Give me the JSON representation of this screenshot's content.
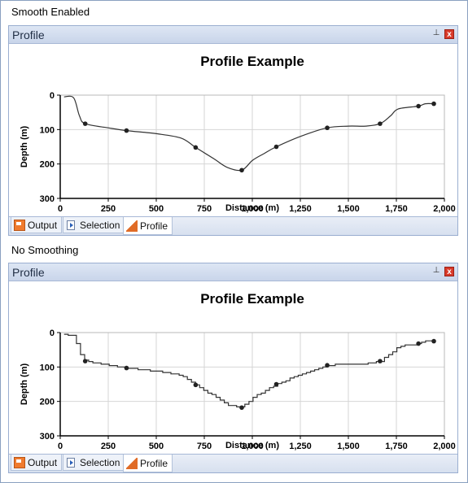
{
  "panels": [
    {
      "caption": "Smooth Enabled",
      "window_title": "Profile",
      "pin_glyph": "⊥",
      "close_glyph": "x",
      "tabs": [
        {
          "label": "Output",
          "icon": "output-icon",
          "active": false
        },
        {
          "label": "Selection",
          "icon": "selection-icon",
          "active": false
        },
        {
          "label": "Profile",
          "icon": "profile-icon",
          "active": true
        }
      ]
    },
    {
      "caption": "No Smoothing",
      "window_title": "Profile",
      "pin_glyph": "⊥",
      "close_glyph": "x",
      "tabs": [
        {
          "label": "Output",
          "icon": "output-icon",
          "active": false
        },
        {
          "label": "Selection",
          "icon": "selection-icon",
          "active": false
        },
        {
          "label": "Profile",
          "icon": "profile-icon",
          "active": true
        }
      ]
    }
  ],
  "chart_data": [
    {
      "type": "line",
      "title": "Profile Example",
      "xlabel": "Distance (m)",
      "ylabel": "Depth (m)",
      "xlim": [
        0,
        2000
      ],
      "ylim": [
        0,
        300
      ],
      "y_inverted": true,
      "x_ticks": [
        0,
        250,
        500,
        750,
        1000,
        1250,
        1500,
        1750,
        2000
      ],
      "x_tick_labels": [
        "0",
        "250",
        "500",
        "750",
        "1,000",
        "1,250",
        "1,500",
        "1,750",
        "2,000"
      ],
      "y_ticks": [
        0,
        100,
        200,
        300
      ],
      "y_tick_labels": [
        "0",
        "100",
        "200",
        "300"
      ],
      "grid": true,
      "smooth": true,
      "line_color": "#333333",
      "points": [
        {
          "x": 20,
          "y": 5
        },
        {
          "x": 70,
          "y": 8
        },
        {
          "x": 100,
          "y": 60
        },
        {
          "x": 130,
          "y": 83
        },
        {
          "x": 250,
          "y": 95
        },
        {
          "x": 345,
          "y": 103
        },
        {
          "x": 500,
          "y": 112
        },
        {
          "x": 630,
          "y": 125
        },
        {
          "x": 705,
          "y": 152
        },
        {
          "x": 800,
          "y": 185
        },
        {
          "x": 870,
          "y": 210
        },
        {
          "x": 945,
          "y": 218
        },
        {
          "x": 1000,
          "y": 190
        },
        {
          "x": 1060,
          "y": 170
        },
        {
          "x": 1125,
          "y": 150
        },
        {
          "x": 1250,
          "y": 120
        },
        {
          "x": 1390,
          "y": 95
        },
        {
          "x": 1500,
          "y": 90
        },
        {
          "x": 1590,
          "y": 90
        },
        {
          "x": 1665,
          "y": 83
        },
        {
          "x": 1720,
          "y": 60
        },
        {
          "x": 1760,
          "y": 40
        },
        {
          "x": 1865,
          "y": 32
        },
        {
          "x": 1900,
          "y": 25
        },
        {
          "x": 1945,
          "y": 25
        }
      ],
      "markers": [
        {
          "x": 130,
          "y": 83
        },
        {
          "x": 345,
          "y": 103
        },
        {
          "x": 705,
          "y": 152
        },
        {
          "x": 945,
          "y": 218
        },
        {
          "x": 1125,
          "y": 150
        },
        {
          "x": 1390,
          "y": 95
        },
        {
          "x": 1665,
          "y": 83
        },
        {
          "x": 1865,
          "y": 32
        },
        {
          "x": 1945,
          "y": 25
        }
      ]
    },
    {
      "type": "line",
      "title": "Profile Example",
      "xlabel": "Distance (m)",
      "ylabel": "Depth (m)",
      "xlim": [
        0,
        2000
      ],
      "ylim": [
        0,
        300
      ],
      "y_inverted": true,
      "x_ticks": [
        0,
        250,
        500,
        750,
        1000,
        1250,
        1500,
        1750,
        2000
      ],
      "x_tick_labels": [
        "0",
        "250",
        "500",
        "750",
        "1,000",
        "1,250",
        "1,500",
        "1,750",
        "2,000"
      ],
      "y_ticks": [
        0,
        100,
        200,
        300
      ],
      "y_tick_labels": [
        "0",
        "100",
        "200",
        "300"
      ],
      "grid": true,
      "smooth": false,
      "step": true,
      "line_color": "#333333",
      "points": [
        {
          "x": 20,
          "y": 5
        },
        {
          "x": 70,
          "y": 8
        },
        {
          "x": 100,
          "y": 60
        },
        {
          "x": 130,
          "y": 83
        },
        {
          "x": 250,
          "y": 95
        },
        {
          "x": 345,
          "y": 103
        },
        {
          "x": 500,
          "y": 112
        },
        {
          "x": 630,
          "y": 125
        },
        {
          "x": 705,
          "y": 152
        },
        {
          "x": 800,
          "y": 185
        },
        {
          "x": 870,
          "y": 210
        },
        {
          "x": 945,
          "y": 218
        },
        {
          "x": 1000,
          "y": 190
        },
        {
          "x": 1060,
          "y": 170
        },
        {
          "x": 1125,
          "y": 150
        },
        {
          "x": 1250,
          "y": 120
        },
        {
          "x": 1390,
          "y": 95
        },
        {
          "x": 1500,
          "y": 90
        },
        {
          "x": 1590,
          "y": 90
        },
        {
          "x": 1665,
          "y": 83
        },
        {
          "x": 1720,
          "y": 60
        },
        {
          "x": 1760,
          "y": 40
        },
        {
          "x": 1865,
          "y": 32
        },
        {
          "x": 1900,
          "y": 25
        },
        {
          "x": 1945,
          "y": 25
        }
      ],
      "markers": [
        {
          "x": 130,
          "y": 83
        },
        {
          "x": 345,
          "y": 103
        },
        {
          "x": 705,
          "y": 152
        },
        {
          "x": 945,
          "y": 218
        },
        {
          "x": 1125,
          "y": 150
        },
        {
          "x": 1390,
          "y": 95
        },
        {
          "x": 1665,
          "y": 83
        },
        {
          "x": 1865,
          "y": 32
        },
        {
          "x": 1945,
          "y": 25
        }
      ]
    }
  ]
}
